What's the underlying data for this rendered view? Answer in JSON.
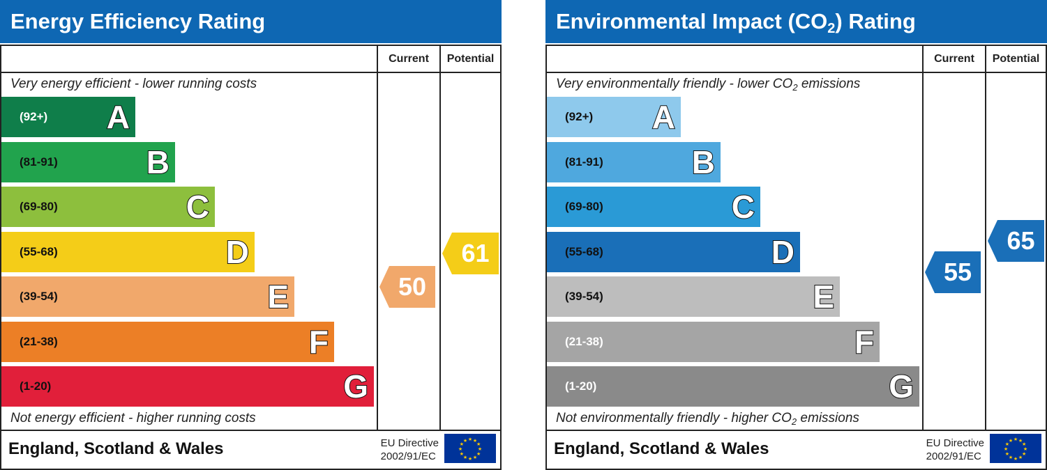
{
  "chart_data": [
    {
      "type": "bar",
      "title": "Energy Efficiency Rating",
      "columns": [
        "Current",
        "Potential"
      ],
      "top_note": "Very energy efficient - lower running costs",
      "bottom_note": "Not energy efficient - higher running costs",
      "bands": [
        {
          "range": "(92+)",
          "letter": "A",
          "color": "#0f7e4a",
          "text_color": "#ffffff"
        },
        {
          "range": "(81-91)",
          "letter": "B",
          "color": "#21a34d",
          "text_color": "#111111"
        },
        {
          "range": "(69-80)",
          "letter": "C",
          "color": "#8dbf3d",
          "text_color": "#111111"
        },
        {
          "range": "(55-68)",
          "letter": "D",
          "color": "#f4cd18",
          "text_color": "#111111"
        },
        {
          "range": "(39-54)",
          "letter": "E",
          "color": "#f1a86b",
          "text_color": "#111111"
        },
        {
          "range": "(21-38)",
          "letter": "F",
          "color": "#ec7f26",
          "text_color": "#111111"
        },
        {
          "range": "(1-20)",
          "letter": "G",
          "color": "#e11f3a",
          "text_color": "#111111"
        }
      ],
      "current": {
        "value": 50,
        "color": "#f1a86b"
      },
      "potential": {
        "value": 61,
        "color": "#f4cd18"
      },
      "footer_region": "England, Scotland & Wales",
      "footer_directive": "EU Directive",
      "footer_code": "2002/91/EC"
    },
    {
      "type": "bar",
      "title": "Environmental Impact (CO2) Rating",
      "title_pre": "Environmental Impact (CO",
      "title_sub": "2",
      "title_post": ") Rating",
      "columns": [
        "Current",
        "Potential"
      ],
      "top_note": "Very environmentally friendly - lower CO2 emissions",
      "top_note_pre": "Very environmentally friendly - lower CO",
      "top_note_sub": "2",
      "top_note_post": " emissions",
      "bottom_note": "Not environmentally friendly - higher CO2 emissions",
      "bottom_note_pre": "Not environmentally friendly - higher CO",
      "bottom_note_sub": "2",
      "bottom_note_post": " emissions",
      "bands": [
        {
          "range": "(92+)",
          "letter": "A",
          "color": "#8ec9ec",
          "text_color": "#111111"
        },
        {
          "range": "(81-91)",
          "letter": "B",
          "color": "#4fa8de",
          "text_color": "#111111"
        },
        {
          "range": "(69-80)",
          "letter": "C",
          "color": "#2a9ad6",
          "text_color": "#111111"
        },
        {
          "range": "(55-68)",
          "letter": "D",
          "color": "#1a6fb8",
          "text_color": "#111111"
        },
        {
          "range": "(39-54)",
          "letter": "E",
          "color": "#bdbdbd",
          "text_color": "#111111"
        },
        {
          "range": "(21-38)",
          "letter": "F",
          "color": "#a5a5a5",
          "text_color": "#ffffff"
        },
        {
          "range": "(1-20)",
          "letter": "G",
          "color": "#8a8a8a",
          "text_color": "#ffffff"
        }
      ],
      "current": {
        "value": 55,
        "color": "#1a6fb8"
      },
      "potential": {
        "value": 65,
        "color": "#1a6fb8"
      },
      "footer_region": "England, Scotland & Wales",
      "footer_directive": "EU Directive",
      "footer_code": "2002/91/EC"
    }
  ]
}
